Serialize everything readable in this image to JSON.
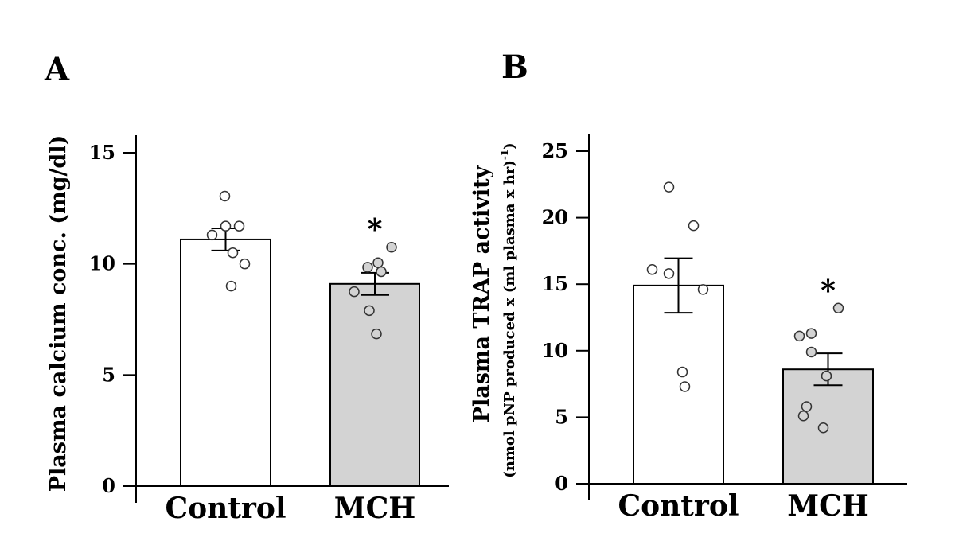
{
  "chart_data": [
    {
      "panel_label": "A",
      "type": "bar",
      "categories": [
        "Control",
        "MCH"
      ],
      "ylabel": "Plasma calcium conc. (mg/dl)",
      "ylabel_sub": "",
      "ylim": [
        0,
        15
      ],
      "yticks": [
        0,
        5,
        10,
        15
      ],
      "grid": false,
      "legend": "none",
      "bar_colors": [
        "#ffffff",
        "#d3d3d3"
      ],
      "values": [
        11.1,
        9.1
      ],
      "error": [
        0.5,
        0.5
      ],
      "points": [
        [
          13.05,
          11.7,
          11.7,
          11.3,
          10.5,
          10.0,
          9.0
        ],
        [
          10.75,
          10.05,
          9.85,
          9.65,
          8.75,
          7.9,
          6.85
        ]
      ],
      "significance": [
        "",
        "*"
      ]
    },
    {
      "panel_label": "B",
      "type": "bar",
      "categories": [
        "Control",
        "MCH"
      ],
      "ylabel": "Plasma TRAP activity",
      "ylabel_sub": "(nmol pNP produced x (ml plasma x hr)",
      "ylabel_sub_sup": "-1",
      "ylabel_sub_end": ")",
      "ylim": [
        0,
        25
      ],
      "yticks": [
        0,
        5,
        10,
        15,
        20,
        25
      ],
      "grid": false,
      "legend": "none",
      "bar_colors": [
        "#ffffff",
        "#d3d3d3"
      ],
      "values": [
        14.9,
        8.6
      ],
      "error": [
        2.05,
        1.2
      ],
      "points": [
        [
          22.3,
          19.4,
          16.1,
          15.8,
          14.6,
          8.4,
          7.3
        ],
        [
          13.2,
          11.3,
          11.1,
          9.9,
          8.1,
          5.8,
          5.1,
          4.2
        ]
      ],
      "significance": [
        "",
        "*"
      ]
    }
  ]
}
